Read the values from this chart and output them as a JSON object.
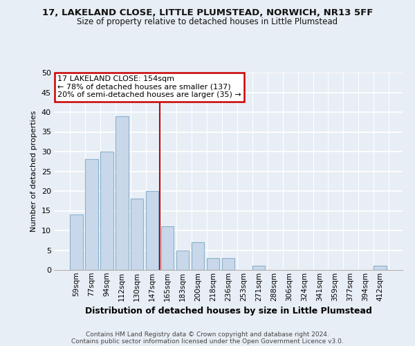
{
  "title1": "17, LAKELAND CLOSE, LITTLE PLUMSTEAD, NORWICH, NR13 5FF",
  "title2": "Size of property relative to detached houses in Little Plumstead",
  "xlabel": "Distribution of detached houses by size in Little Plumstead",
  "ylabel": "Number of detached properties",
  "footer1": "Contains HM Land Registry data © Crown copyright and database right 2024.",
  "footer2": "Contains public sector information licensed under the Open Government Licence v3.0.",
  "annotation_line1": "17 LAKELAND CLOSE: 154sqm",
  "annotation_line2": "← 78% of detached houses are smaller (137)",
  "annotation_line3": "20% of semi-detached houses are larger (35) →",
  "bar_color": "#c8d8ea",
  "bar_edge_color": "#8ab0cc",
  "vline_color": "#cc0000",
  "annotation_box_edgecolor": "#cc0000",
  "annotation_fill": "#ffffff",
  "categories": [
    "59sqm",
    "77sqm",
    "94sqm",
    "112sqm",
    "130sqm",
    "147sqm",
    "165sqm",
    "183sqm",
    "200sqm",
    "218sqm",
    "236sqm",
    "253sqm",
    "271sqm",
    "288sqm",
    "306sqm",
    "324sqm",
    "341sqm",
    "359sqm",
    "377sqm",
    "394sqm",
    "412sqm"
  ],
  "values": [
    14,
    28,
    30,
    39,
    18,
    20,
    11,
    5,
    7,
    3,
    3,
    0,
    1,
    0,
    0,
    0,
    0,
    0,
    0,
    0,
    1
  ],
  "vline_pos": 5.5,
  "ylim": [
    0,
    50
  ],
  "yticks": [
    0,
    5,
    10,
    15,
    20,
    25,
    30,
    35,
    40,
    45,
    50
  ],
  "bg_color": "#e8eef5",
  "grid_color": "#ffffff",
  "title1_fontsize": 9.5,
  "title2_fontsize": 8.5,
  "ylabel_fontsize": 8,
  "xlabel_fontsize": 9,
  "tick_fontsize": 7.5,
  "ann_fontsize": 8
}
